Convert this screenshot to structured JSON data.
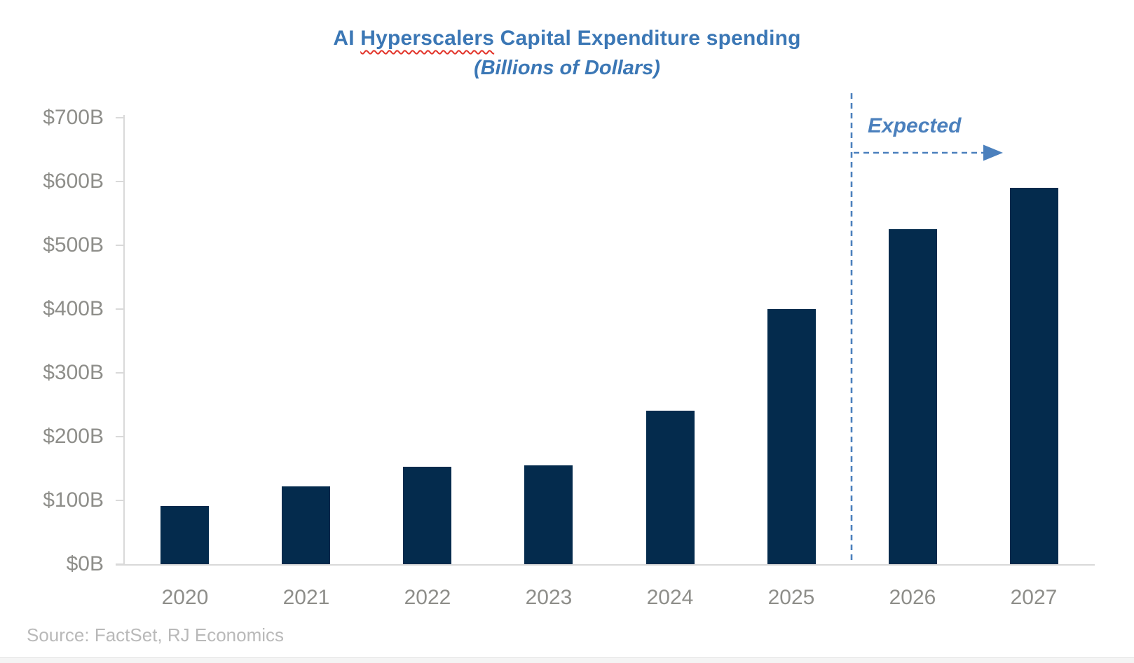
{
  "header": {
    "title_part1": "AI ",
    "title_misspelled_word": "Hyperscalers",
    "title_part2": " Capital Expenditure spending",
    "subtitle": "(Billions of Dollars)"
  },
  "annotation": {
    "expected_label": "Expected"
  },
  "footer": {
    "source": "Source: FactSet, RJ Economics"
  },
  "colors": {
    "title_blue": "#3b77b5",
    "annotation_blue": "#4b80bd",
    "bar_navy": "#042b4d",
    "axis_gray": "#d9d9d9",
    "label_gray": "#8e8e8a",
    "source_gray": "#b9b9b9",
    "spellcheck_red": "#e2342a"
  },
  "chart_data": {
    "type": "bar",
    "title": "AI Hyperscalers Capital Expenditure spending",
    "subtitle": "(Billions of Dollars)",
    "categories": [
      "2020",
      "2021",
      "2022",
      "2023",
      "2024",
      "2025",
      "2026",
      "2027"
    ],
    "values": [
      91,
      122,
      153,
      155,
      241,
      400,
      525,
      590
    ],
    "unit": "Billions of Dollars",
    "ylim": [
      0,
      700
    ],
    "y_tick_step": 100,
    "y_tick_labels": [
      "$0B",
      "$100B",
      "$200B",
      "$300B",
      "$400B",
      "$500B",
      "$600B",
      "$700B"
    ],
    "grid": false,
    "legend": "none",
    "bar_color": "#042b4d",
    "expected_categories": [
      "2026",
      "2027"
    ],
    "expected_annotation": "Expected"
  }
}
